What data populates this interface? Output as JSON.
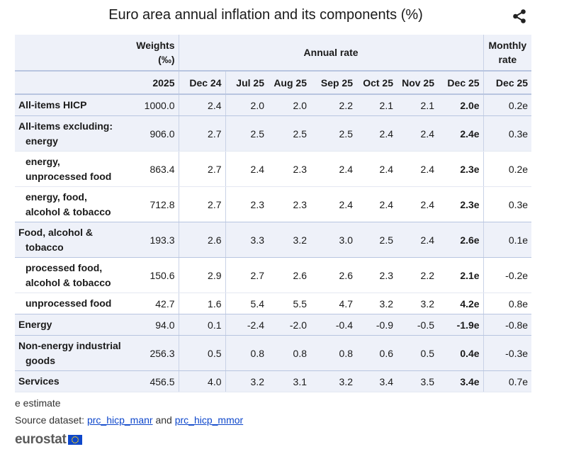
{
  "title": "Euro area annual inflation and its components (%)",
  "icons": {
    "share": "share-icon",
    "flag": "eu-flag-icon"
  },
  "header": {
    "weights": "Weights (‰)",
    "annual_rate": "Annual rate",
    "monthly_rate": "Monthly rate",
    "columns": [
      "2025",
      "Dec 24",
      "Jul 25",
      "Aug 25",
      "Sep 25",
      "Oct 25",
      "Nov 25",
      "Dec 25",
      "Dec 25"
    ]
  },
  "rows": [
    {
      "label": "All-items HICP",
      "values": [
        "1000.0",
        "2.4",
        "2.0",
        "2.0",
        "2.2",
        "2.1",
        "2.1",
        "2.0e",
        "0.2e"
      ]
    },
    {
      "label": "All-items excluding:",
      "label2": "energy",
      "values": [
        "906.0",
        "2.7",
        "2.5",
        "2.5",
        "2.5",
        "2.4",
        "2.4",
        "2.4e",
        "0.3e"
      ]
    },
    {
      "label": "energy,",
      "label2": "unprocessed food",
      "values": [
        "863.4",
        "2.7",
        "2.4",
        "2.3",
        "2.4",
        "2.4",
        "2.4",
        "2.3e",
        "0.2e"
      ]
    },
    {
      "label": "energy, food,",
      "label2": "alcohol & tobacco",
      "values": [
        "712.8",
        "2.7",
        "2.3",
        "2.3",
        "2.4",
        "2.4",
        "2.4",
        "2.3e",
        "0.3e"
      ]
    },
    {
      "label": "Food, alcohol &",
      "label2": "tobacco",
      "values": [
        "193.3",
        "2.6",
        "3.3",
        "3.2",
        "3.0",
        "2.5",
        "2.4",
        "2.6e",
        "0.1e"
      ]
    },
    {
      "label": "processed food,",
      "label2": "alcohol & tobacco",
      "values": [
        "150.6",
        "2.9",
        "2.7",
        "2.6",
        "2.6",
        "2.3",
        "2.2",
        "2.1e",
        "-0.2e"
      ]
    },
    {
      "label": "unprocessed food",
      "values": [
        "42.7",
        "1.6",
        "5.4",
        "5.5",
        "4.7",
        "3.2",
        "3.2",
        "4.2e",
        "0.8e"
      ]
    },
    {
      "label": "Energy",
      "values": [
        "94.0",
        "0.1",
        "-2.4",
        "-2.0",
        "-0.4",
        "-0.9",
        "-0.5",
        "-1.9e",
        "-0.8e"
      ]
    },
    {
      "label": "Non-energy industrial",
      "label2": "goods",
      "values": [
        "256.3",
        "0.5",
        "0.8",
        "0.8",
        "0.8",
        "0.6",
        "0.5",
        "0.4e",
        "-0.3e"
      ]
    },
    {
      "label": "Services",
      "values": [
        "456.5",
        "4.0",
        "3.2",
        "3.1",
        "3.2",
        "3.4",
        "3.5",
        "3.4e",
        "0.7e"
      ]
    }
  ],
  "footer": {
    "estimate_note": "e estimate",
    "source_prefix": "Source dataset:",
    "link1": "prc_hicp_manr",
    "and": "and",
    "link2": "prc_hicp_mmor",
    "logo": "eurostat"
  }
}
